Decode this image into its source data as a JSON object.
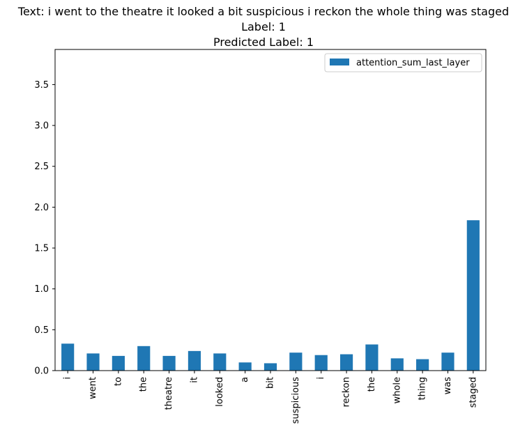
{
  "title_lines": [
    "Text: i went to the theatre it looked a bit suspicious i reckon the whole thing was staged",
    "Label: 1",
    "Predicted Label: 1"
  ],
  "chart_data": {
    "type": "bar",
    "categories": [
      "i",
      "went",
      "to",
      "the",
      "theatre",
      "it",
      "looked",
      "a",
      "bit",
      "suspicious",
      "i",
      "reckon",
      "the",
      "whole",
      "thing",
      "was",
      "staged"
    ],
    "series": [
      {
        "name": "attention_sum_last_layer",
        "values": [
          0.33,
          0.21,
          0.18,
          0.3,
          0.18,
          0.24,
          0.21,
          0.1,
          0.09,
          0.22,
          0.19,
          0.2,
          0.32,
          0.15,
          0.14,
          0.22,
          1.84
        ]
      }
    ],
    "yticks": [
      "0.0",
      "0.5",
      "1.0",
      "1.5",
      "2.0",
      "2.5",
      "3.0",
      "3.5"
    ],
    "ylim": [
      0,
      3.93
    ],
    "xlabel": "",
    "ylabel": "",
    "legend_position": "top-right",
    "bar_color": "#1f77b4"
  }
}
